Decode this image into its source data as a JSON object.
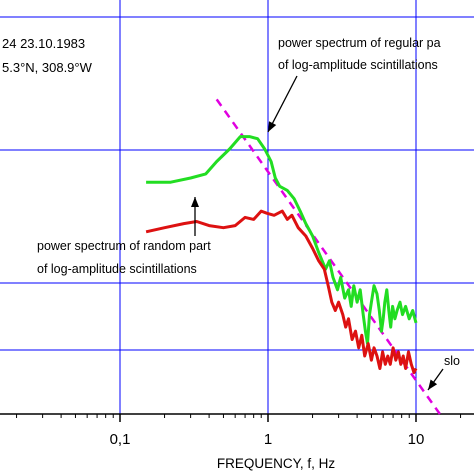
{
  "chart_data": {
    "type": "line",
    "title": "",
    "xlabel": "FREQUENCY, f, Hz",
    "ylabel": "",
    "x_scale": "log",
    "xlim": [
      0.01,
      30
    ],
    "grid": true,
    "grid_color": "#0000ff",
    "x_tick_labels": [
      {
        "value": 0.1,
        "label": "0,1"
      },
      {
        "value": 1,
        "label": "1"
      },
      {
        "value": 10,
        "label": "10"
      }
    ],
    "header_lines": [
      "24 23.10.1983",
      "5.3°N, 308.9°W"
    ],
    "series": [
      {
        "name": "power spectrum of regular part of log-amplitude scintillations",
        "color": "#22dd22",
        "points": [
          [
            0.15,
            0.56
          ],
          [
            0.22,
            0.56
          ],
          [
            0.3,
            0.57
          ],
          [
            0.38,
            0.58
          ],
          [
            0.45,
            0.61
          ],
          [
            0.55,
            0.64
          ],
          [
            0.65,
            0.67
          ],
          [
            0.75,
            0.67
          ],
          [
            0.85,
            0.665
          ],
          [
            0.95,
            0.64
          ],
          [
            1.05,
            0.61
          ],
          [
            1.12,
            0.57
          ],
          [
            1.2,
            0.55
          ],
          [
            1.35,
            0.54
          ],
          [
            1.5,
            0.52
          ],
          [
            1.65,
            0.49
          ],
          [
            1.8,
            0.46
          ],
          [
            2.0,
            0.43
          ],
          [
            2.2,
            0.39
          ],
          [
            2.45,
            0.35
          ],
          [
            2.6,
            0.37
          ],
          [
            2.75,
            0.33
          ],
          [
            2.95,
            0.3
          ],
          [
            3.1,
            0.33
          ],
          [
            3.3,
            0.28
          ],
          [
            3.5,
            0.3
          ],
          [
            3.65,
            0.26
          ],
          [
            3.8,
            0.31
          ],
          [
            4.0,
            0.27
          ],
          [
            4.2,
            0.3
          ],
          [
            4.4,
            0.24
          ],
          [
            4.55,
            0.2
          ],
          [
            4.7,
            0.17
          ],
          [
            4.85,
            0.24
          ],
          [
            5.0,
            0.27
          ],
          [
            5.2,
            0.31
          ],
          [
            5.45,
            0.29
          ],
          [
            5.65,
            0.25
          ],
          [
            5.85,
            0.2
          ],
          [
            6.0,
            0.23
          ],
          [
            6.15,
            0.27
          ],
          [
            6.35,
            0.3
          ],
          [
            6.55,
            0.25
          ],
          [
            6.75,
            0.21
          ],
          [
            6.95,
            0.26
          ],
          [
            7.2,
            0.23
          ],
          [
            7.45,
            0.25
          ],
          [
            7.8,
            0.27
          ],
          [
            8.1,
            0.24
          ],
          [
            8.5,
            0.26
          ],
          [
            9.0,
            0.23
          ],
          [
            9.5,
            0.25
          ],
          [
            10.0,
            0.22
          ]
        ]
      },
      {
        "name": "power spectrum of random part of log-amplitude scintillations",
        "color": "#dd1111",
        "points": [
          [
            0.15,
            0.44
          ],
          [
            0.2,
            0.45
          ],
          [
            0.27,
            0.46
          ],
          [
            0.33,
            0.465
          ],
          [
            0.4,
            0.455
          ],
          [
            0.5,
            0.45
          ],
          [
            0.6,
            0.455
          ],
          [
            0.7,
            0.475
          ],
          [
            0.8,
            0.47
          ],
          [
            0.9,
            0.49
          ],
          [
            0.98,
            0.485
          ],
          [
            1.1,
            0.48
          ],
          [
            1.25,
            0.49
          ],
          [
            1.35,
            0.47
          ],
          [
            1.45,
            0.48
          ],
          [
            1.6,
            0.45
          ],
          [
            1.8,
            0.43
          ],
          [
            2.0,
            0.4
          ],
          [
            2.2,
            0.37
          ],
          [
            2.4,
            0.35
          ],
          [
            2.55,
            0.31
          ],
          [
            2.7,
            0.27
          ],
          [
            2.85,
            0.25
          ],
          [
            3.0,
            0.27
          ],
          [
            3.2,
            0.24
          ],
          [
            3.35,
            0.21
          ],
          [
            3.5,
            0.23
          ],
          [
            3.7,
            0.18
          ],
          [
            3.9,
            0.2
          ],
          [
            4.1,
            0.16
          ],
          [
            4.3,
            0.19
          ],
          [
            4.5,
            0.14
          ],
          [
            4.75,
            0.17
          ],
          [
            5.0,
            0.13
          ],
          [
            5.2,
            0.16
          ],
          [
            5.45,
            0.14
          ],
          [
            5.7,
            0.11
          ],
          [
            5.95,
            0.15
          ],
          [
            6.2,
            0.12
          ],
          [
            6.45,
            0.14
          ],
          [
            6.7,
            0.12
          ],
          [
            7.0,
            0.16
          ],
          [
            7.3,
            0.13
          ],
          [
            7.6,
            0.15
          ],
          [
            7.9,
            0.12
          ],
          [
            8.2,
            0.14
          ],
          [
            8.5,
            0.11
          ],
          [
            8.9,
            0.15
          ],
          [
            9.3,
            0.12
          ],
          [
            9.7,
            0.1
          ],
          [
            10.0,
            0.11
          ]
        ]
      }
    ],
    "slope_line": {
      "label": "slo",
      "color": "#e000e0",
      "points": [
        [
          0.45,
          0.76
        ],
        [
          14.5,
          0.0
        ]
      ]
    },
    "annotations": [
      {
        "lines": [
          "power spectrum of regular pa",
          "of log-amplitude scintillations"
        ]
      },
      {
        "lines": [
          "power spectrum of random part",
          "of log-amplitude scintillations"
        ]
      },
      {
        "lines": [
          "slo"
        ]
      }
    ]
  }
}
